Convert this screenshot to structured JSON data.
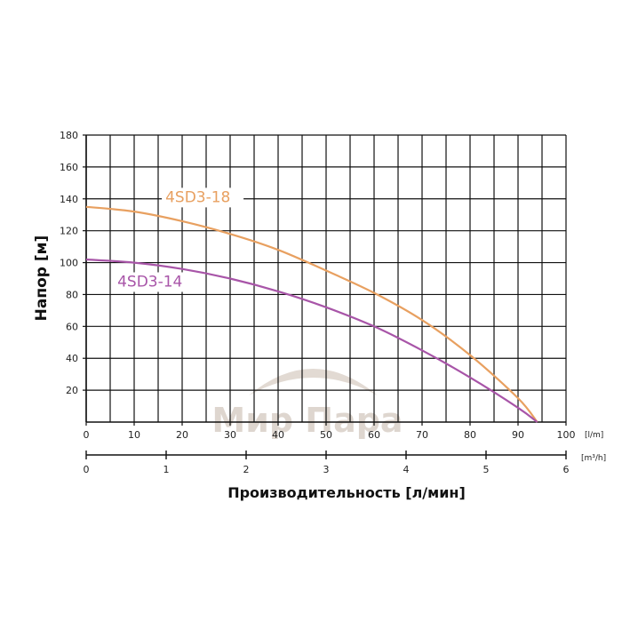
{
  "chart_data": {
    "type": "line",
    "ylabel": "Напор [м]",
    "xlabel": "Производительность [л/мин]",
    "x_unit": "[l/m]",
    "x2_unit": "[m³/h]",
    "ylim": [
      0,
      180
    ],
    "xlim": [
      0,
      100
    ],
    "x2lim": [
      0,
      6
    ],
    "y_ticks": [
      "20",
      "40",
      "60",
      "80",
      "100",
      "120",
      "140",
      "160",
      "180"
    ],
    "x_ticks": [
      "0",
      "10",
      "20",
      "30",
      "40",
      "50",
      "60",
      "70",
      "80",
      "90",
      "100"
    ],
    "x2_ticks": [
      "0",
      "1",
      "2",
      "3",
      "4",
      "5",
      "6"
    ],
    "grid": true,
    "series": [
      {
        "name": "4SD3-18",
        "color": "#e8a060",
        "x": [
          0,
          10,
          20,
          30,
          40,
          50,
          60,
          70,
          80,
          90,
          94
        ],
        "y": [
          135,
          132,
          126,
          118,
          108,
          95,
          81,
          64,
          42,
          15,
          0
        ]
      },
      {
        "name": "4SD3-14",
        "color": "#a855a8",
        "x": [
          0,
          10,
          20,
          30,
          40,
          50,
          60,
          70,
          80,
          90,
          94
        ],
        "y": [
          102,
          100,
          96,
          90,
          82,
          72,
          60,
          45,
          28,
          9,
          0
        ]
      }
    ]
  },
  "watermark": {
    "text": "Мир Пара",
    "color": "#d9cfc7"
  }
}
